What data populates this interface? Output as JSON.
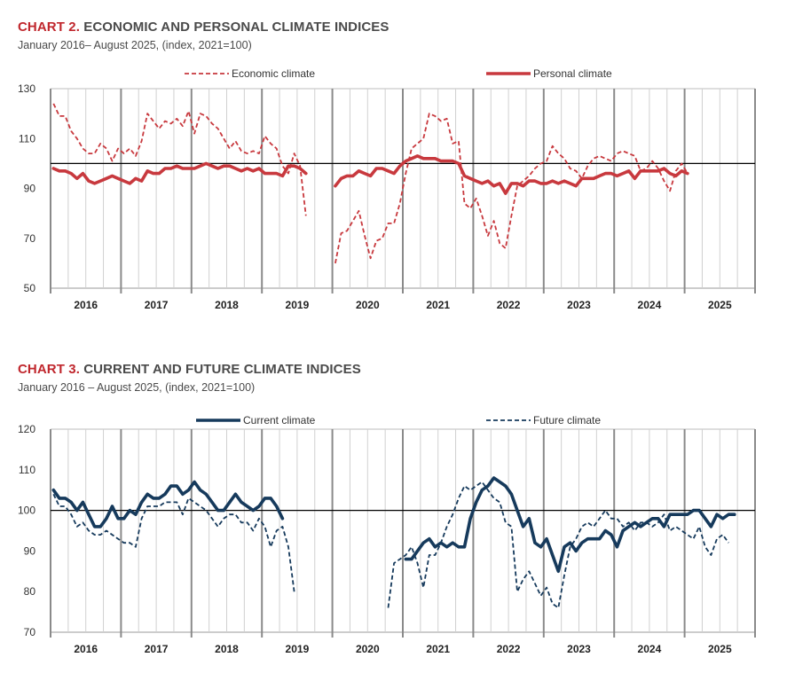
{
  "charts": [
    {
      "title_number": "CHART 2.",
      "title_rest": " ECONOMIC AND PERSONAL CLIMATE INDICES",
      "subtitle": "January 2016– August 2025, (index, 2021=100)"
    },
    {
      "title_number": "CHART 3.",
      "title_rest": " CURRENT AND FUTURE CLIMATE INDICES",
      "subtitle": "January 2016 – August 2025, (index, 2021=100)"
    }
  ],
  "colors": {
    "red": "#c8393e",
    "navy": "#163a5c",
    "grid": "#d0d0d0",
    "year_line": "#8a8a8a",
    "ref_line": "#000000"
  },
  "chart_data": [
    {
      "type": "line",
      "title": "CHART 2. ECONOMIC AND PERSONAL CLIMATE INDICES",
      "subtitle": "January 2016– August 2025, (index, 2021=100)",
      "x_years": [
        "2016",
        "2017",
        "2018",
        "2019",
        "2020",
        "2021",
        "2022",
        "2023",
        "2024",
        "2025"
      ],
      "x_unit": "quarter",
      "ylim": [
        50,
        130
      ],
      "yticks": [
        "50",
        "70",
        "90",
        "110",
        "130"
      ],
      "reference_line": 100,
      "legend_position": "top",
      "series": [
        {
          "name": "Economic climate",
          "style": "dashed",
          "color": "#c8393e",
          "segments": [
            [
              124,
              119,
              119,
              113,
              110,
              106,
              104,
              104,
              108,
              106,
              101,
              106,
              104,
              106,
              103,
              109,
              120,
              117,
              114,
              117,
              116,
              118,
              115,
              121,
              112,
              120,
              119,
              116,
              114,
              110,
              106,
              109,
              105,
              104,
              105,
              104,
              111,
              108,
              106,
              99,
              96,
              104,
              99,
              79
            ],
            [
              60,
              72,
              73,
              77,
              81,
              71,
              62,
              69,
              70,
              76,
              76,
              84,
              96,
              106,
              108,
              110,
              120,
              119,
              117,
              118,
              108,
              109,
              84,
              82,
              86,
              79,
              71,
              77,
              68,
              66,
              79,
              91,
              93,
              95,
              98,
              100,
              101,
              107,
              104,
              102,
              98,
              97,
              94,
              99,
              102,
              103,
              102,
              101,
              104,
              105,
              104,
              103,
              97,
              98,
              101,
              98,
              93,
              89,
              97,
              100,
              96
            ]
          ],
          "segment_start_quarter": [
            0,
            16
          ]
        },
        {
          "name": "Personal climate",
          "style": "solid",
          "color": "#c8393e",
          "segments": [
            [
              98,
              97,
              97,
              96,
              94,
              96,
              93,
              92,
              93,
              94,
              95,
              94,
              93,
              92,
              94,
              93,
              97,
              96,
              96,
              98,
              98,
              99,
              98,
              98,
              98,
              99,
              100,
              99,
              98,
              99,
              99,
              98,
              97,
              98,
              97,
              98,
              96,
              96,
              96,
              95,
              99,
              99,
              98,
              96
            ],
            [
              91,
              94,
              95,
              95,
              97,
              96,
              95,
              98,
              98,
              97,
              96,
              99,
              101,
              102,
              103,
              102,
              102,
              102,
              101,
              101,
              101,
              100,
              95,
              94,
              93,
              92,
              93,
              91,
              92,
              88,
              92,
              92,
              91,
              93,
              93,
              92,
              92,
              93,
              92,
              93,
              92,
              91,
              94,
              94,
              94,
              95,
              96,
              96,
              95,
              96,
              97,
              94,
              97,
              97,
              97,
              97,
              98,
              96,
              95,
              97,
              96
            ]
          ],
          "segment_start_quarter": [
            0,
            16
          ]
        }
      ]
    },
    {
      "type": "line",
      "title": "CHART 3. CURRENT AND FUTURE CLIMATE INDICES",
      "subtitle": "January 2016 – August 2025, (index, 2021=100)",
      "x_years": [
        "2016",
        "2017",
        "2018",
        "2019",
        "2020",
        "2021",
        "2022",
        "2023",
        "2024",
        "2025"
      ],
      "x_unit": "quarter",
      "ylim": [
        70,
        120
      ],
      "yticks": [
        "70",
        "80",
        "90",
        "100",
        "110",
        "120"
      ],
      "reference_line": 100,
      "legend_position": "top",
      "series": [
        {
          "name": "Current climate",
          "style": "solid",
          "color": "#163a5c",
          "segments": [
            [
              105,
              103,
              103,
              102,
              100,
              102,
              99,
              96,
              96,
              98,
              101,
              98,
              98,
              100,
              99,
              102,
              104,
              103,
              103,
              104,
              106,
              106,
              104,
              105,
              107,
              105,
              104,
              102,
              100,
              100,
              102,
              104,
              102,
              101,
              100,
              101,
              103,
              103,
              101,
              98
            ],
            [
              88,
              88,
              90,
              92,
              93,
              91,
              92,
              91,
              92,
              91,
              91,
              98,
              102,
              105,
              106,
              108,
              107,
              106,
              104,
              100,
              96,
              98,
              92,
              91,
              93,
              89,
              85,
              91,
              92,
              90,
              92,
              93,
              93,
              93,
              95,
              94,
              91,
              95,
              96,
              97,
              96,
              97,
              98,
              98,
              96,
              99,
              99,
              99,
              99,
              100,
              100,
              98,
              96,
              99,
              98,
              99,
              99
            ]
          ],
          "segment_start_quarter": [
            0,
            20
          ]
        },
        {
          "name": "Future climate",
          "style": "dashed",
          "color": "#163a5c",
          "segments": [
            [
              104,
              101,
              101,
              99,
              96,
              97,
              95,
              94,
              94,
              95,
              94,
              93,
              92,
              92,
              91,
              98,
              101,
              101,
              101,
              102,
              102,
              102,
              99,
              103,
              102,
              101,
              100,
              98,
              96,
              98,
              99,
              99,
              97,
              97,
              95,
              98,
              96,
              91,
              95,
              96,
              91,
              80
            ],
            [
              76,
              87,
              88,
              89,
              91,
              87,
              81,
              89,
              89,
              92,
              96,
              99,
              103,
              106,
              105,
              106,
              107,
              105,
              103,
              102,
              97,
              96,
              80,
              83,
              85,
              82,
              79,
              81,
              77,
              76,
              84,
              91,
              93,
              96,
              97,
              96,
              98,
              100,
              98,
              98,
              96,
              97,
              95,
              97,
              97,
              96,
              97,
              99,
              95,
              96,
              95,
              94,
              93,
              96,
              91,
              89,
              93,
              94,
              92
            ]
          ],
          "segment_start_quarter": [
            0,
            19
          ]
        }
      ]
    }
  ]
}
